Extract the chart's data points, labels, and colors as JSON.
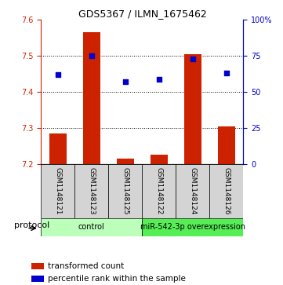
{
  "title": "GDS5367 / ILMN_1675462",
  "samples": [
    "GSM1148121",
    "GSM1148123",
    "GSM1148125",
    "GSM1148122",
    "GSM1148124",
    "GSM1148126"
  ],
  "transformed_counts": [
    7.285,
    7.565,
    7.215,
    7.225,
    7.505,
    7.305
  ],
  "percentile_ranks": [
    62,
    75,
    57,
    59,
    73,
    63
  ],
  "ylim_left": [
    7.2,
    7.6
  ],
  "ylim_right": [
    0,
    100
  ],
  "yticks_left": [
    7.2,
    7.3,
    7.4,
    7.5,
    7.6
  ],
  "yticks_right": [
    0,
    25,
    50,
    75,
    100
  ],
  "bar_color": "#cc2200",
  "dot_color": "#0000cc",
  "bar_width": 0.5,
  "groups": [
    {
      "label": "control",
      "indices": [
        0,
        1,
        2
      ],
      "color": "#bbffbb"
    },
    {
      "label": "miR-542-3p overexpression",
      "indices": [
        3,
        4,
        5
      ],
      "color": "#55ee55"
    }
  ],
  "protocol_label": "protocol",
  "legend_bar_label": "transformed count",
  "legend_dot_label": "percentile rank within the sample",
  "background_plot": "#ffffff",
  "left_axis_color": "#cc2200",
  "right_axis_color": "#0000cc",
  "sample_box_color": "#d4d4d4",
  "title_fontsize": 9,
  "axis_tick_fontsize": 7,
  "label_fontsize": 6.5,
  "group_fontsize": 7,
  "legend_fontsize": 7.5,
  "protocol_fontsize": 8
}
